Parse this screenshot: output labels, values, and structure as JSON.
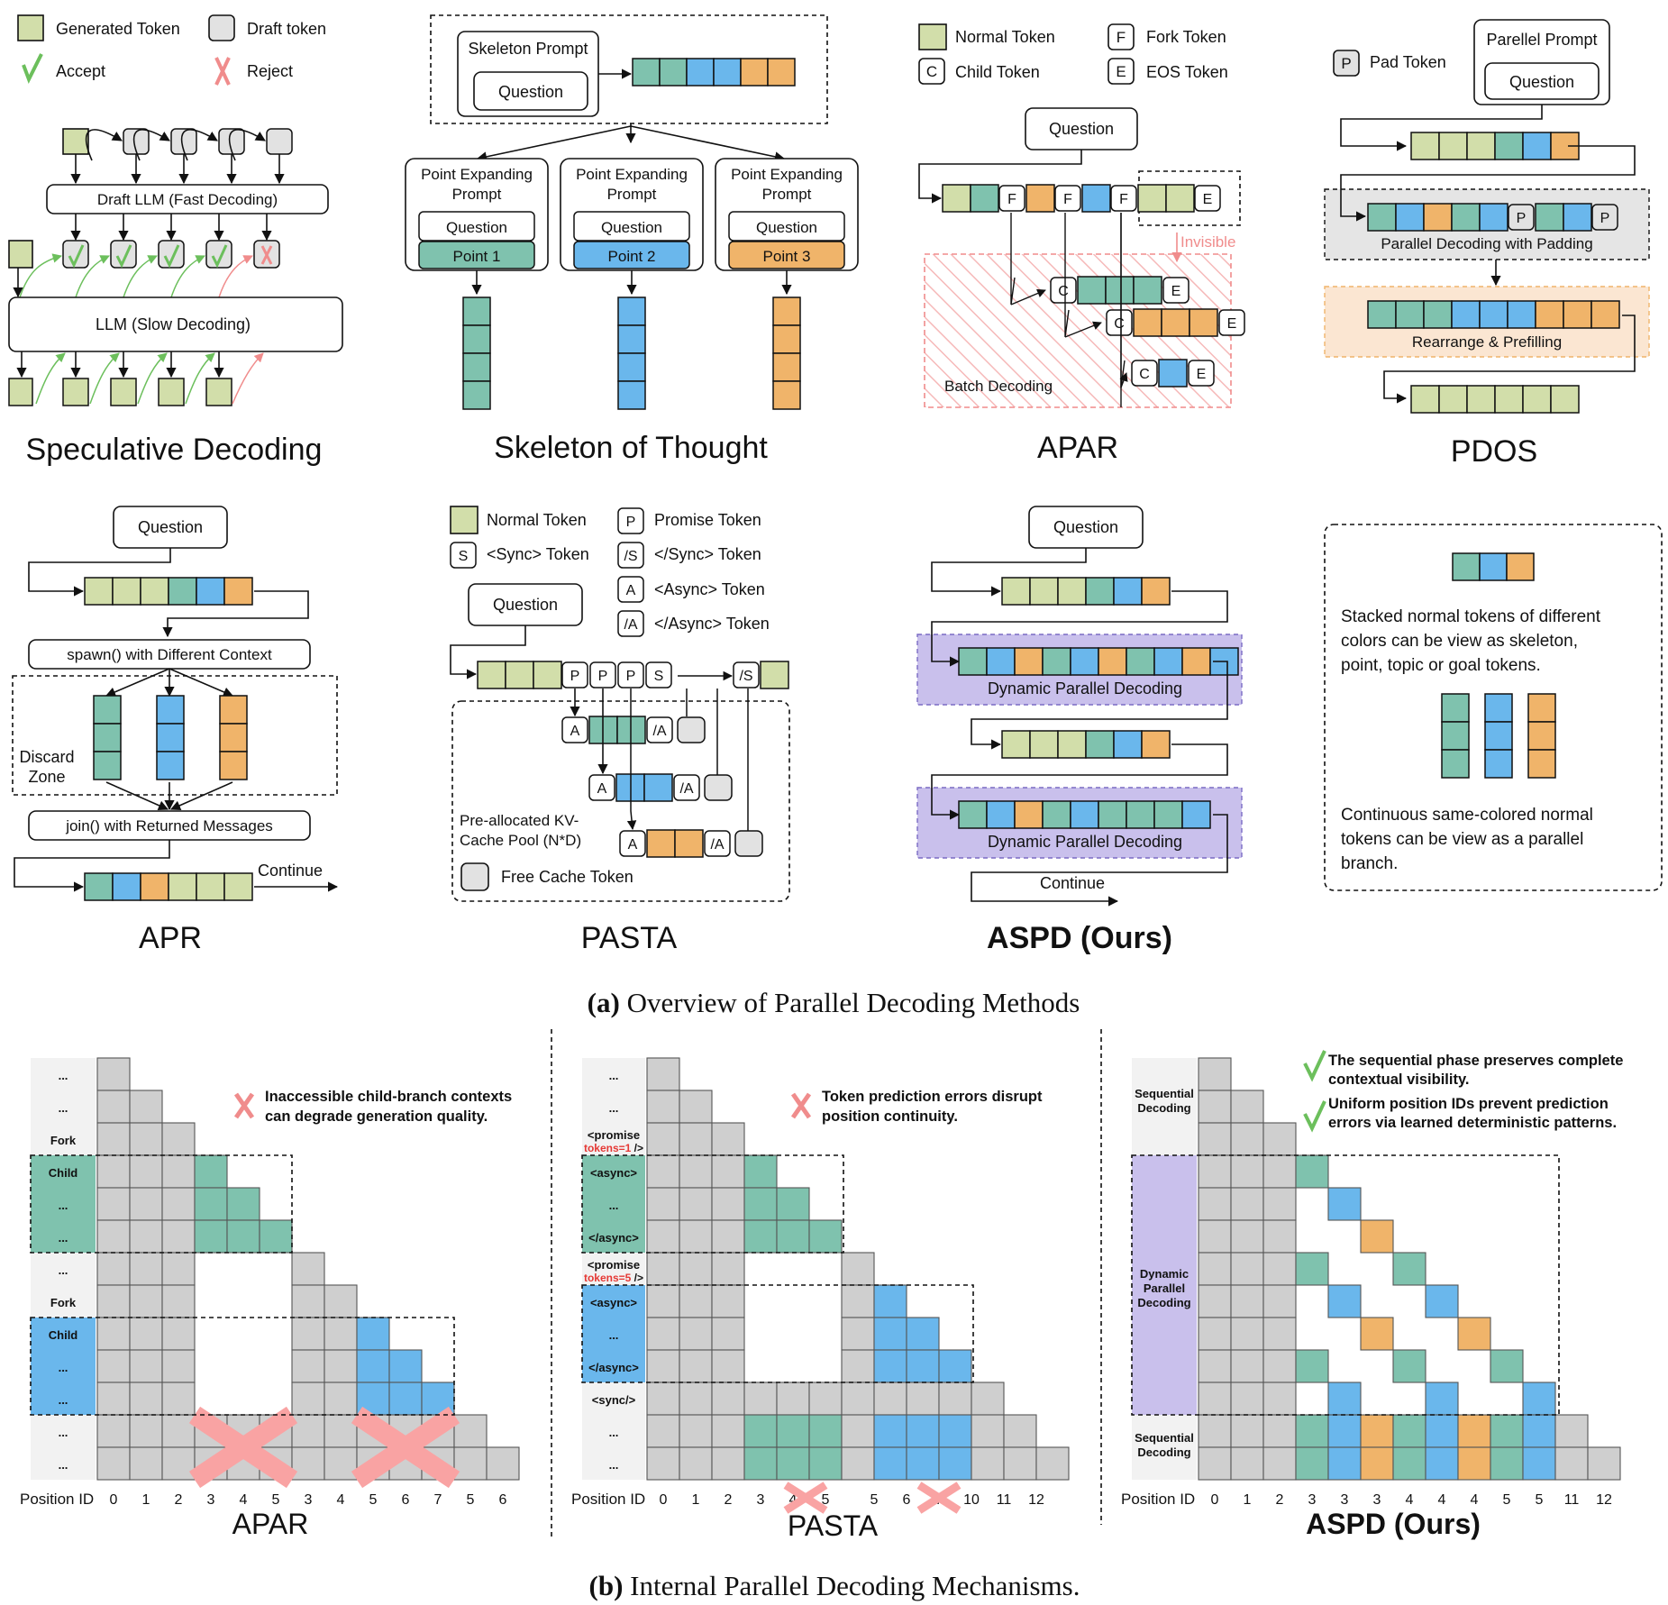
{
  "colors": {
    "green": "#d2deaa",
    "teal": "#7fc2ae",
    "blue": "#6ab7ec",
    "orange": "#f0b46a",
    "gray": "#e2e2e2",
    "purple": "#c9c0ec",
    "red": "#f08c8c",
    "check": "#6cbf5c",
    "hatch": "#f6b9b9"
  },
  "panel_a": {
    "spec": {
      "title": "Speculative Decoding",
      "legend_generated": "Generated Token",
      "legend_draft": "Draft token",
      "legend_accept": "Accept",
      "legend_reject": "Reject",
      "draft_llm": "Draft LLM (Fast Decoding)",
      "llm": "LLM (Slow Decoding)",
      "accept_icon": "check-icon",
      "reject_icon": "cross-icon"
    },
    "sot": {
      "title": "Skeleton of Thought",
      "skeleton_prompt": "Skeleton Prompt",
      "question": "Question",
      "pep": "Point Expanding",
      "pep2": "Prompt",
      "points": [
        "Point 1",
        "Point 2",
        "Point 3"
      ]
    },
    "apar": {
      "title": "APAR",
      "legend_normal": "Normal Token",
      "legend_child": "Child Token",
      "legend_fork": "Fork Token",
      "legend_eos": "EOS Token",
      "question": "Question",
      "invisible": "Invisible",
      "batch": "Batch Decoding",
      "F": "F",
      "C": "C",
      "E": "E"
    },
    "pdos": {
      "title": "PDOS",
      "legend_pad": "Pad Token",
      "parallel_prompt": "Parellel Prompt",
      "question": "Question",
      "pdwp": "Parallel Decoding with Padding",
      "rearrange": "Rearrange & Prefilling",
      "P": "P"
    },
    "apr": {
      "title": "APR",
      "question": "Question",
      "spawn": "spawn() with Different Context",
      "discard1": "Discard",
      "discard2": "Zone",
      "join": "join() with Returned Messages",
      "continue": "Continue"
    },
    "pasta": {
      "title": "PASTA",
      "legend_normal": "Normal Token",
      "legend_promise": "Promise Token",
      "legend_sync": "<Sync> Token",
      "legend_endsync": "</Sync> Token",
      "legend_async": "<Async> Token",
      "legend_endasync": "</Async> Token",
      "question": "Question",
      "pool1": "Pre-allocated KV-",
      "pool2": "Cache Pool (N*D)",
      "free": "Free Cache Token",
      "P": "P",
      "S": "S",
      "A": "A",
      "endA": "/A",
      "endS": "/S",
      "endS_legend": "/S",
      "endA_legend": "/A"
    },
    "aspd": {
      "title": "ASPD (Ours)",
      "question": "Question",
      "dpd": "Dynamic Parallel Decoding",
      "continue": "Continue"
    },
    "note": {
      "text1": [
        "Stacked normal tokens of different",
        "colors can be view as skeleton,",
        "point, topic or goal tokens."
      ],
      "text2": [
        "Continuous same-colored normal",
        "tokens can be view as a parallel",
        "branch."
      ]
    },
    "caption_bold": "(a)",
    "caption_text": " Overview of Parallel Decoding Methods"
  },
  "panel_b": {
    "position_label": "Position ID",
    "apar": {
      "title": "APAR",
      "row_labels": [
        "...",
        "...",
        "Fork",
        "Child",
        "...",
        "...",
        "...",
        "Fork",
        "Child",
        "...",
        "...",
        "...",
        "..."
      ],
      "pos_ids": [
        "0",
        "1",
        "2",
        "3",
        "4",
        "5",
        "3",
        "4",
        "5",
        "6",
        "7",
        "5",
        "6"
      ],
      "note": [
        "Inaccessible child-branch contexts",
        "can degrade generation quality."
      ]
    },
    "pasta": {
      "title": "PASTA",
      "row_labels": [
        "...",
        "...",
        "<promise",
        "tokens=1 />",
        "<async>",
        "...",
        "</async>",
        "<promise",
        "tokens=5 />",
        "<async>",
        "...",
        "</async>",
        "<sync/>",
        "...",
        "..."
      ],
      "pos_ids": [
        "0",
        "1",
        "2",
        "3",
        "4",
        "5",
        "5",
        "6",
        "7",
        "10",
        "11",
        "12"
      ],
      "note": [
        "Token prediction errors disrupt",
        "position continuity."
      ]
    },
    "aspd": {
      "title": "ASPD (Ours)",
      "seq1": [
        "Sequential",
        "Decoding"
      ],
      "dpd": [
        "Dynamic",
        "Parallel",
        "Decoding"
      ],
      "seq2": [
        "Sequential",
        "Decoding"
      ],
      "pos_ids": [
        "0",
        "1",
        "2",
        "3",
        "3",
        "3",
        "4",
        "4",
        "4",
        "5",
        "5",
        "11",
        "12"
      ],
      "note1": [
        "The sequential phase preserves complete",
        "contextual visibility."
      ],
      "note2": [
        "Uniform position IDs prevent prediction",
        "errors via learned deterministic patterns."
      ]
    },
    "caption_bold": "(b)",
    "caption_text": " Internal Parallel Decoding Mechanisms."
  }
}
